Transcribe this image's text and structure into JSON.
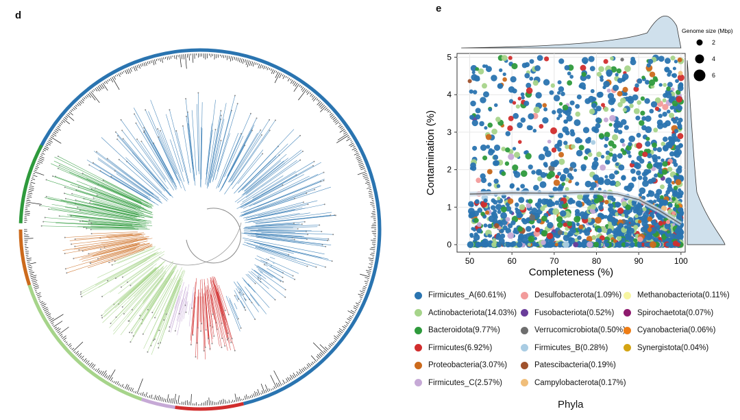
{
  "panel_d": {
    "label": "d"
  },
  "panel_e": {
    "label": "e"
  },
  "chart_data": [
    {
      "type": "circular-phylogenetic-tree",
      "panel": "d",
      "clades": [
        {
          "phylum": "Firmicutes_A",
          "color": "#2a74b0"
        },
        {
          "phylum": "Bacteroidota",
          "color": "#2e9a3c"
        },
        {
          "phylum": "Proteobacteria",
          "color": "#cc6a1c"
        },
        {
          "phylum": "Actinobacteriota",
          "color": "#a6d48a"
        },
        {
          "phylum": "Firmicutes_C",
          "color": "#c6a9d6"
        },
        {
          "phylum": "Firmicutes",
          "color": "#d12d2d"
        }
      ]
    },
    {
      "type": "scatter",
      "panel": "e",
      "xlabel": "Completeness (%)",
      "ylabel": "Contamination (%)",
      "xlim": [
        47,
        101
      ],
      "ylim": [
        -0.2,
        5.1
      ],
      "xticks": [
        "50",
        "60",
        "70",
        "80",
        "90",
        "100"
      ],
      "yticks": [
        "0",
        "1",
        "2",
        "3",
        "4",
        "5"
      ],
      "grid": true,
      "trend_line": {
        "x": [
          50,
          60,
          70,
          80,
          85,
          90,
          95,
          100
        ],
        "y": [
          1.35,
          1.38,
          1.37,
          1.4,
          1.35,
          1.2,
          0.9,
          0.55
        ]
      },
      "size_legend": {
        "title": "Genome size (Mbp)",
        "sizes": [
          "2",
          "4",
          "6"
        ]
      },
      "marginal_distributions": {
        "top": "completeness density",
        "right": "contamination density",
        "fill": "#cfe0ec"
      }
    }
  ],
  "legend": {
    "title": "Phyla",
    "items": [
      {
        "label": "Firmicutes_A(60.61%)",
        "color": "#2a74b0"
      },
      {
        "label": "Actinobacteriota(14.03%)",
        "color": "#a6d48a"
      },
      {
        "label": "Bacteroidota(9.77%)",
        "color": "#2e9a3c"
      },
      {
        "label": "Firmicutes(6.92%)",
        "color": "#d12d2d"
      },
      {
        "label": "Proteobacteria(3.07%)",
        "color": "#cc6a1c"
      },
      {
        "label": "Firmicutes_C(2.57%)",
        "color": "#c6a9d6"
      },
      {
        "label": "Desulfobacterota(1.09%)",
        "color": "#f29b9b"
      },
      {
        "label": "Fusobacteriota(0.52%)",
        "color": "#6a3d9a"
      },
      {
        "label": "Verrucomicrobiota(0.50%)",
        "color": "#6e6e6e"
      },
      {
        "label": "Firmicutes_B(0.28%)",
        "color": "#a9cce3"
      },
      {
        "label": "Patescibacteria(0.19%)",
        "color": "#a0522d"
      },
      {
        "label": "Campylobacterota(0.17%)",
        "color": "#f0be7a"
      },
      {
        "label": "Methanobacteriota(0.11%)",
        "color": "#f7f5a0"
      },
      {
        "label": "Spirochaetota(0.07%)",
        "color": "#8e1a6e"
      },
      {
        "label": "Cyanobacteria(0.06%)",
        "color": "#ee7d16"
      },
      {
        "label": "Synergistota(0.04%)",
        "color": "#d4a413"
      }
    ]
  }
}
